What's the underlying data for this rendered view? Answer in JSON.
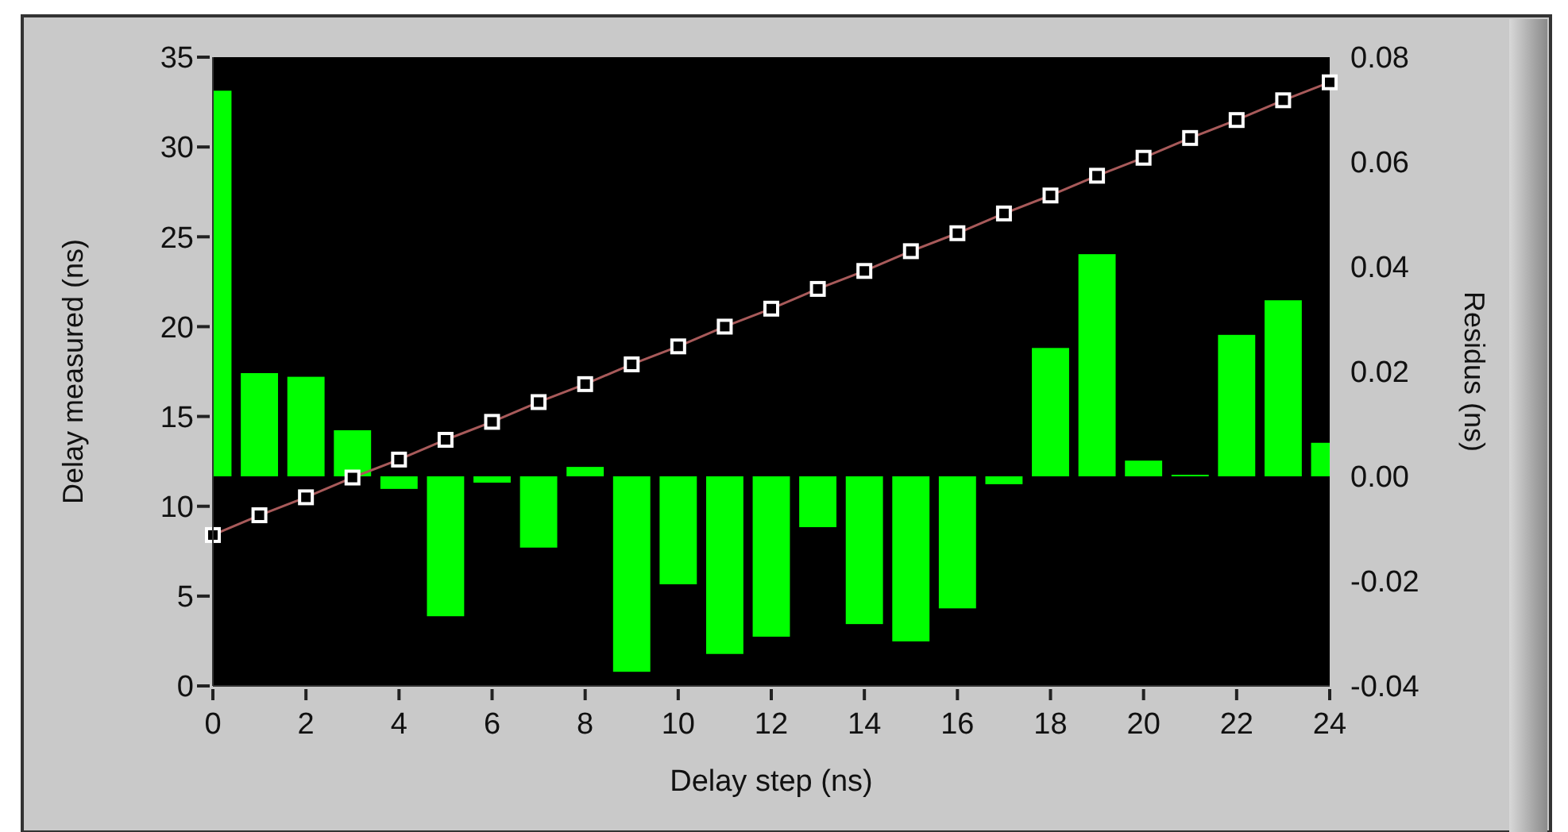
{
  "chart_data": {
    "type": "line",
    "xlabel": "Delay step (ns)",
    "ylabel": "Delay measured (ns)",
    "y2label": "Residus (ns)",
    "x": [
      0,
      1,
      2,
      3,
      4,
      5,
      6,
      7,
      8,
      9,
      10,
      11,
      12,
      13,
      14,
      15,
      16,
      17,
      18,
      19,
      20,
      21,
      22,
      23,
      24
    ],
    "xlim": [
      0,
      24
    ],
    "xticks": [
      0,
      2,
      4,
      6,
      8,
      10,
      12,
      14,
      16,
      18,
      20,
      22,
      24
    ],
    "ylim": [
      0,
      35
    ],
    "yticks": [
      0,
      5,
      10,
      15,
      20,
      25,
      30,
      35
    ],
    "y2lim": [
      -0.04,
      0.08
    ],
    "y2ticks": [
      {
        "value": -0.04,
        "label": "-0.04"
      },
      {
        "value": -0.02,
        "label": "-0.02"
      },
      {
        "value": 0,
        "label": "0.00"
      },
      {
        "value": 0.02,
        "label": "0.02"
      },
      {
        "value": 0.04,
        "label": "0.04"
      },
      {
        "value": 0.06,
        "label": "0.06"
      },
      {
        "value": 0.08,
        "label": "0.08"
      }
    ],
    "grid": false,
    "series": [
      {
        "type": "bar",
        "axis": "y2",
        "color": "#00ff00",
        "values": [
          0.0736,
          0.0197,
          0.019,
          0.0088,
          -0.0024,
          -0.0267,
          -0.0012,
          -0.0136,
          0.0018,
          -0.0373,
          -0.0206,
          -0.0339,
          -0.0306,
          -0.0097,
          -0.0282,
          -0.0315,
          -0.0252,
          -0.0015,
          0.0245,
          0.0424,
          0.003,
          0.0003,
          0.027,
          0.0336,
          0.0064
        ]
      },
      {
        "color": "#a85a5a",
        "marker": "square",
        "values": [
          8.4,
          9.5,
          10.5,
          11.6,
          12.6,
          13.7,
          14.7,
          15.8,
          16.8,
          17.9,
          18.9,
          20.0,
          21.0,
          22.1,
          23.1,
          24.2,
          25.2,
          26.3,
          27.3,
          28.4,
          29.4,
          30.5,
          31.5,
          32.6,
          33.6
        ]
      }
    ]
  }
}
